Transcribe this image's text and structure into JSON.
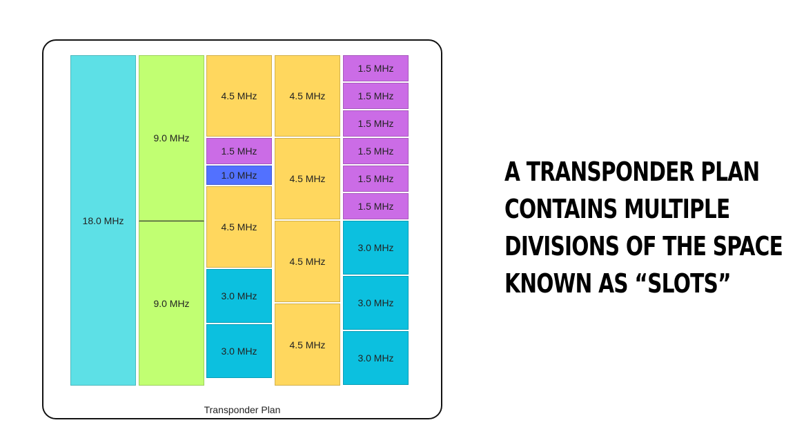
{
  "diagram": {
    "caption": "Transponder Plan",
    "columns": [
      {
        "slots": [
          {
            "label": "18.0 MHz",
            "color": "#5de0e6"
          }
        ]
      },
      {
        "slots": [
          {
            "label": "9.0 MHz",
            "color": "#c1ff72"
          },
          {
            "label": "9.0 MHz",
            "color": "#c1ff72"
          }
        ]
      },
      {
        "slots": [
          {
            "label": "4.5 MHz",
            "color": "#ffd75e"
          },
          {
            "label": "1.5 MHz",
            "color": "#cb6ce6"
          },
          {
            "label": "1.0 MHz",
            "color": "#5271ff"
          },
          {
            "label": "4.5 MHz",
            "color": "#ffd75e"
          },
          {
            "label": "3.0 MHz",
            "color": "#0cc0df"
          },
          {
            "label": "3.0 MHz",
            "color": "#0cc0df"
          }
        ]
      },
      {
        "slots": [
          {
            "label": "4.5 MHz",
            "color": "#ffd75e"
          },
          {
            "label": "4.5 MHz",
            "color": "#ffd75e"
          },
          {
            "label": "4.5 MHz",
            "color": "#ffd75e"
          },
          {
            "label": "4.5 MHz",
            "color": "#ffd75e"
          }
        ]
      },
      {
        "slots": [
          {
            "label": "1.5 MHz",
            "color": "#cb6ce6"
          },
          {
            "label": "1.5 MHz",
            "color": "#cb6ce6"
          },
          {
            "label": "1.5 MHz",
            "color": "#cb6ce6"
          },
          {
            "label": "1.5 MHz",
            "color": "#cb6ce6"
          },
          {
            "label": "1.5 MHz",
            "color": "#cb6ce6"
          },
          {
            "label": "1.5 MHz",
            "color": "#cb6ce6"
          },
          {
            "label": "3.0 MHz",
            "color": "#0cc0df"
          },
          {
            "label": "3.0 MHz",
            "color": "#0cc0df"
          },
          {
            "label": "3.0 MHz",
            "color": "#0cc0df"
          }
        ]
      }
    ]
  },
  "headline": {
    "lines": [
      "A TRANSPONDER PLAN",
      "CONTAINS MULTIPLE",
      "DIVISIONS OF THE SPACE",
      "KNOWN AS “SLOTS”"
    ]
  }
}
